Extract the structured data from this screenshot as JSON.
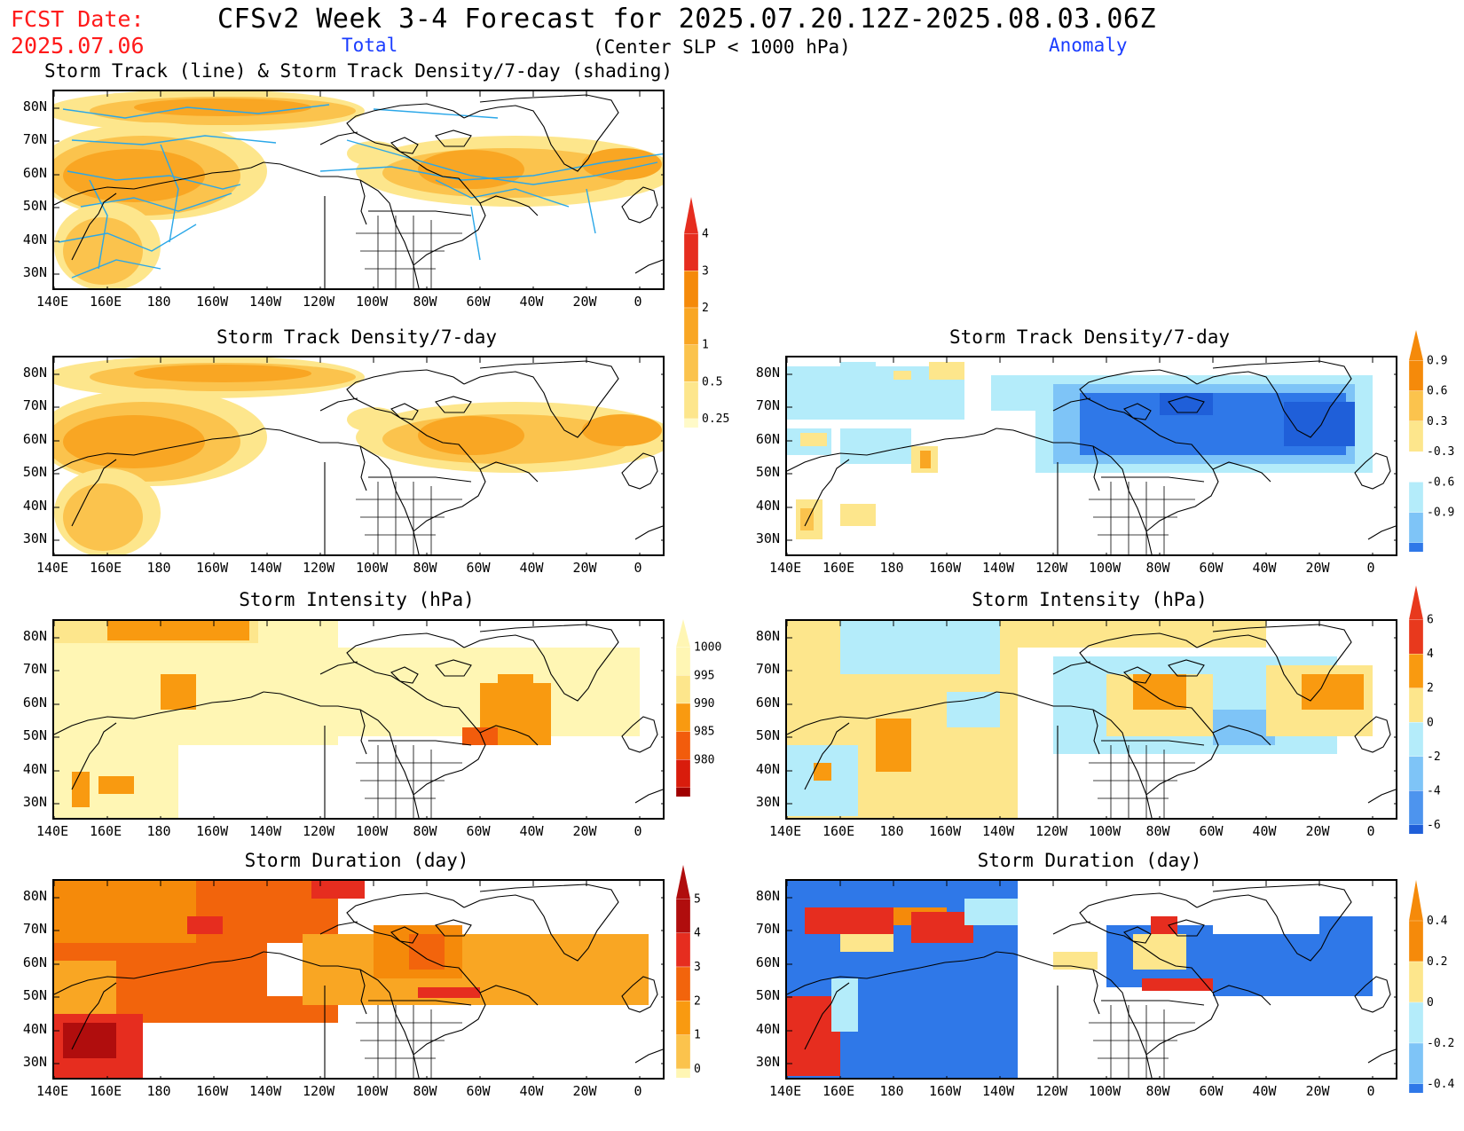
{
  "header": {
    "fcst_label": "FCST Date:",
    "fcst_date": "2025.07.06",
    "title": "CFSv2 Week 3-4 Forecast for 2025.07.20.12Z-2025.08.03.06Z",
    "total_label": "Total",
    "condition": "(Center SLP < 1000 hPa)",
    "anomaly_label": "Anomaly"
  },
  "axes": {
    "lat_ticks": [
      "80N",
      "70N",
      "60N",
      "50N",
      "40N",
      "30N"
    ],
    "lon_ticks": [
      "140E",
      "160E",
      "180",
      "160W",
      "140W",
      "120W",
      "100W",
      "80W",
      "60W",
      "40W",
      "20W",
      "0"
    ]
  },
  "panels": {
    "track_total": {
      "title": "Storm Track (line) & Storm Track Density/7-day (shading)"
    },
    "density_total": {
      "title": "Storm Track Density/7-day"
    },
    "density_anom": {
      "title": "Storm Track Density/7-day"
    },
    "intensity_total": {
      "title": "Storm Intensity (hPa)"
    },
    "intensity_anom": {
      "title": "Storm Intensity (hPa)"
    },
    "duration_total": {
      "title": "Storm Duration (day)"
    },
    "duration_anom": {
      "title": "Storm Duration (day)"
    }
  },
  "colorbars": {
    "density_total": {
      "labels": [
        "4",
        "3",
        "2",
        "1",
        "0.5",
        "0.25"
      ],
      "colors": [
        "#e62d1f",
        "#f58a0a",
        "#f9a623",
        "#fbc34d",
        "#fde68c",
        "#fffac8"
      ]
    },
    "density_anom": {
      "labels": [
        "0.9",
        "0.6",
        "0.3",
        "-0.3",
        "-0.6",
        "-0.9"
      ],
      "colors": [
        "#f58a0a",
        "#fbc34d",
        "#fde68c",
        "#ffffff",
        "#b4ecfa",
        "#7ec4f7",
        "#2f78e8"
      ]
    },
    "intensity_total": {
      "labels": [
        "1000",
        "995",
        "990",
        "985",
        "980"
      ],
      "colors": [
        "#fff6b4",
        "#fde68c",
        "#f99a10",
        "#f25c0c",
        "#d91c0c",
        "#a00000"
      ]
    },
    "intensity_anom": {
      "labels": [
        "6",
        "4",
        "2",
        "0",
        "-2",
        "-4",
        "-6"
      ],
      "colors": [
        "#e8391d",
        "#f99a10",
        "#fde68c",
        "#b4ecfa",
        "#7ec4f7",
        "#4d94ee",
        "#1f5fd9"
      ]
    },
    "duration_total": {
      "labels": [
        "5",
        "4",
        "3",
        "2",
        "1",
        "0"
      ],
      "colors": [
        "#b00d0d",
        "#e62d1f",
        "#f2640c",
        "#f99a10",
        "#fbc34d",
        "#fff6b4"
      ]
    },
    "duration_anom": {
      "labels": [
        "0.4",
        "0.2",
        "0",
        "-0.2",
        "-0.4"
      ],
      "colors": [
        "#f58a0a",
        "#fde68c",
        "#b4ecfa",
        "#7ec4f7",
        "#2f78e8"
      ]
    }
  }
}
